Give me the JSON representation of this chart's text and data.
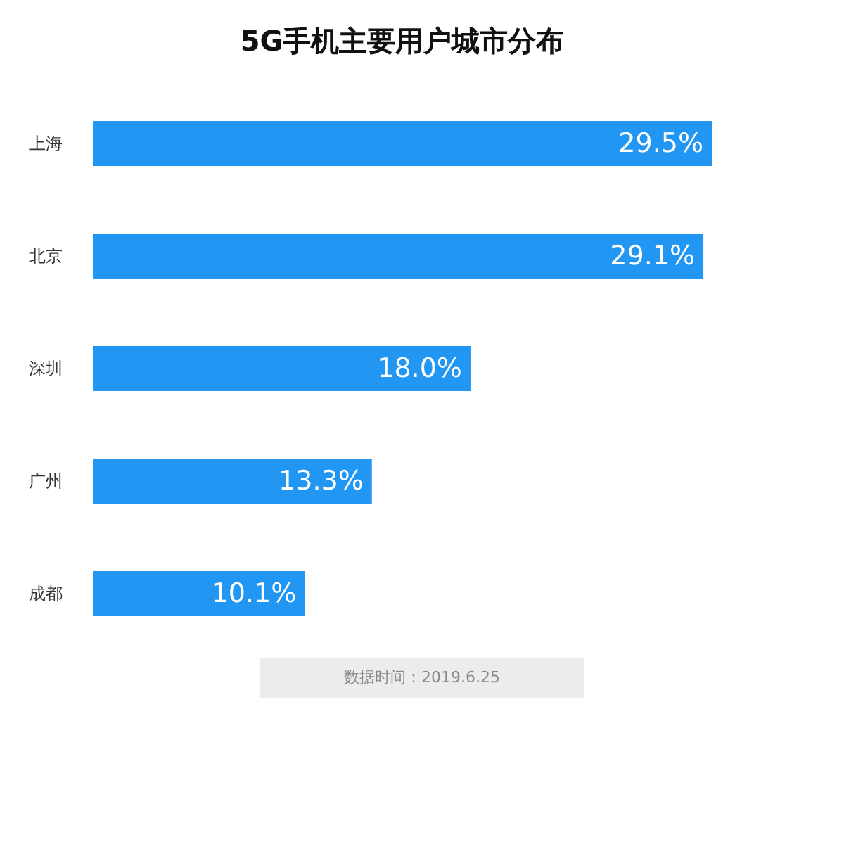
{
  "chart_data": {
    "type": "bar",
    "orientation": "horizontal",
    "title": "5G手机主要用户城市分布",
    "categories": [
      "上海",
      "北京",
      "深圳",
      "广州",
      "成都"
    ],
    "values": [
      29.5,
      29.1,
      18.0,
      13.3,
      10.1
    ],
    "value_labels": [
      "29.5%",
      "29.1%",
      "18.0%",
      "13.3%",
      "10.1%"
    ],
    "color": "#2196f3",
    "annotations": [
      "数据时间：2019.6.25"
    ]
  }
}
